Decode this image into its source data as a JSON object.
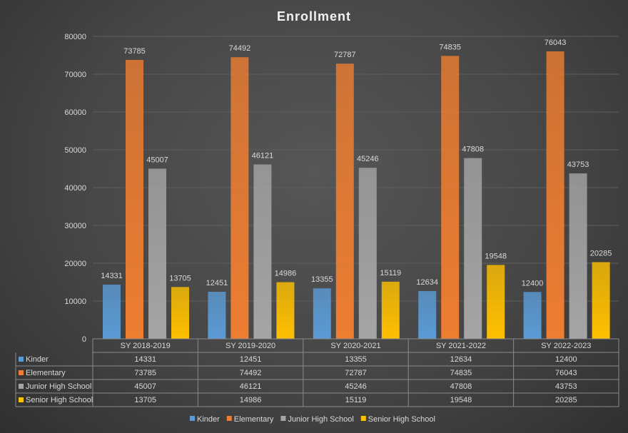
{
  "chart_data": {
    "type": "bar",
    "title": "Enrollment",
    "categories": [
      "SY 2018-2019",
      "SY 2019-2020",
      "SY 2020-2021",
      "SY 2021-2022",
      "SY 2022-2023"
    ],
    "series": [
      {
        "name": "Kinder",
        "color": "#5b9bd5",
        "values": [
          14331,
          12451,
          13355,
          12634,
          12400
        ]
      },
      {
        "name": "Elementary",
        "color": "#ed7d31",
        "values": [
          73785,
          74492,
          72787,
          74835,
          76043
        ]
      },
      {
        "name": "Junior High School",
        "color": "#a5a5a5",
        "values": [
          45007,
          46121,
          45246,
          47808,
          43753
        ]
      },
      {
        "name": "Senior High School",
        "color": "#ffc000",
        "values": [
          13705,
          14986,
          15119,
          19548,
          20285
        ]
      }
    ],
    "ylim": [
      0,
      80000
    ],
    "yticks": [
      0,
      10000,
      20000,
      30000,
      40000,
      50000,
      60000,
      70000,
      80000
    ],
    "grid": true,
    "data_labels": true,
    "data_table": true,
    "legend_position": "bottom"
  }
}
